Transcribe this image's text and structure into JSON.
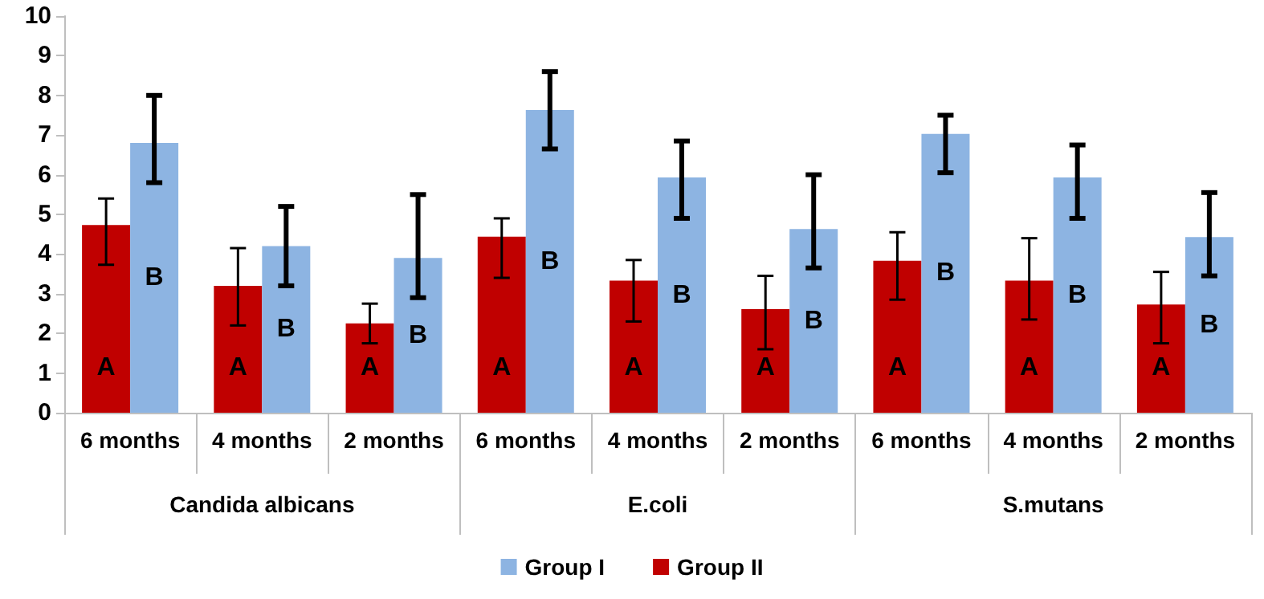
{
  "chart_data": {
    "type": "bar",
    "categories": [
      "6 months",
      "4 months",
      "2 months",
      "6 months",
      "4 months",
      "2 months",
      "6 months",
      "4 months",
      "2 months"
    ],
    "annotations": [
      "Candida albicans",
      "E.coli",
      "S.mutans"
    ],
    "series": [
      {
        "name": "Group II",
        "color": "#c00000",
        "values": [
          4.73,
          3.2,
          2.25,
          4.44,
          3.33,
          2.61,
          3.83,
          3.33,
          2.73
        ],
        "errors": [
          [
            3.73,
            5.4
          ],
          [
            2.2,
            4.15
          ],
          [
            1.75,
            2.75
          ],
          [
            3.4,
            4.9
          ],
          [
            2.3,
            3.85
          ],
          [
            1.6,
            3.45
          ],
          [
            2.85,
            4.55
          ],
          [
            2.35,
            4.4
          ],
          [
            1.75,
            3.55
          ]
        ],
        "value_labels": [
          "A",
          "A",
          "A",
          "A",
          "A",
          "A",
          "A",
          "A",
          "A"
        ]
      },
      {
        "name": "Group I",
        "color": "#8db4e2",
        "values": [
          6.8,
          4.2,
          3.9,
          7.63,
          5.93,
          4.63,
          7.03,
          5.93,
          4.43
        ],
        "errors": [
          [
            5.8,
            8.0
          ],
          [
            3.2,
            5.2
          ],
          [
            2.9,
            5.5
          ],
          [
            6.65,
            8.6
          ],
          [
            4.9,
            6.85
          ],
          [
            3.65,
            6.0
          ],
          [
            6.05,
            7.5
          ],
          [
            4.9,
            6.75
          ],
          [
            3.45,
            5.55
          ]
        ],
        "value_labels": [
          "B",
          "B",
          "B",
          "B",
          "B",
          "B",
          "B",
          "B",
          "B"
        ]
      }
    ],
    "ylim": [
      0,
      10
    ],
    "yticks": [
      0,
      1,
      2,
      3,
      4,
      5,
      6,
      7,
      8,
      9,
      10
    ],
    "grid": false,
    "legend": "bottom"
  }
}
